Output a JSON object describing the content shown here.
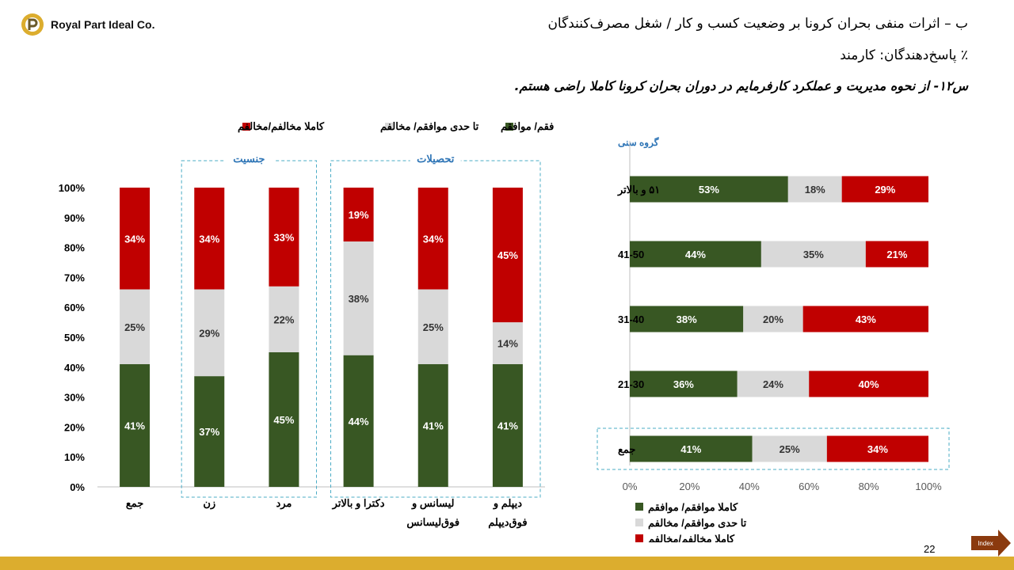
{
  "header": {
    "brand": "Royal Part Ideal Co.",
    "title_line1": "ب – اثرات منفی بحران کرونا بر وضعیت کسب و کار / شغل مصرف‌کنندگان",
    "title_line2": "٪ پاسخ‌دهندگان: کارمند",
    "question": "س۱۲- از نحوه مدیریت و عملکرد کارفرمایم در دوران بحران کرونا کاملا راضی هستم."
  },
  "colors": {
    "agree": "#385723",
    "neutral": "#D9D9D9",
    "disagree": "#C00000",
    "frame": "#4BACC6",
    "brand": "#DCAD2E",
    "index_button": "#8B3A0E"
  },
  "chart_data": [
    {
      "type": "bar",
      "stacked": true,
      "orientation": "vertical",
      "legend_position": "top",
      "ylim": [
        0,
        100
      ],
      "y_ticks": [
        "0%",
        "10%",
        "20%",
        "30%",
        "40%",
        "50%",
        "60%",
        "70%",
        "80%",
        "90%",
        "100%"
      ],
      "categories": [
        "جمع",
        "زن",
        "مرد",
        "دکترا و بالاتر",
        "لیسانس و فوق‌لیسانس",
        "دیپلم و فوق‌دیپلم"
      ],
      "category_lines": [
        [
          "جمع"
        ],
        [
          "زن"
        ],
        [
          "مرد"
        ],
        [
          "دکترا و بالاتر"
        ],
        [
          "لیسانس و",
          "فوق‌لیسانس"
        ],
        [
          "دیپلم و",
          "فوق‌دیپلم"
        ]
      ],
      "groups": [
        {
          "label": "جنسیت",
          "categories": [
            "زن",
            "مرد"
          ]
        },
        {
          "label": "تحصیلات",
          "categories": [
            "دکترا و بالاتر",
            "لیسانس و فوق‌لیسانس",
            "دیپلم و فوق‌دیپلم"
          ]
        }
      ],
      "series": [
        {
          "name": "کاملا موافقم/ موافقم",
          "values": [
            41,
            37,
            45,
            44,
            41,
            41
          ]
        },
        {
          "name": "تا حدی موافقم/ مخالفم",
          "values": [
            25,
            29,
            22,
            38,
            25,
            14
          ]
        },
        {
          "name": "کاملا مخالفم/مخالفم",
          "values": [
            34,
            34,
            33,
            19,
            34,
            45
          ]
        }
      ]
    },
    {
      "type": "bar",
      "stacked": true,
      "orientation": "horizontal",
      "legend_position": "bottom",
      "title": "گروه سنی",
      "xlim": [
        0,
        100
      ],
      "x_ticks": [
        "0%",
        "20%",
        "40%",
        "60%",
        "80%",
        "100%"
      ],
      "categories": [
        "۵۱ و بالاتر",
        "41-50",
        "31-40",
        "21-30",
        "جمع"
      ],
      "series": [
        {
          "name": "کاملا موافقم/ موافقم",
          "values": [
            53,
            44,
            38,
            36,
            41
          ]
        },
        {
          "name": "تا حدی موافقم/ مخالفم",
          "values": [
            18,
            35,
            20,
            24,
            25
          ]
        },
        {
          "name": "کاملا مخالفم/مخالفم",
          "values": [
            29,
            21,
            43,
            40,
            34
          ]
        }
      ]
    }
  ],
  "footer": {
    "page_number": "22",
    "index_label": "Index"
  }
}
